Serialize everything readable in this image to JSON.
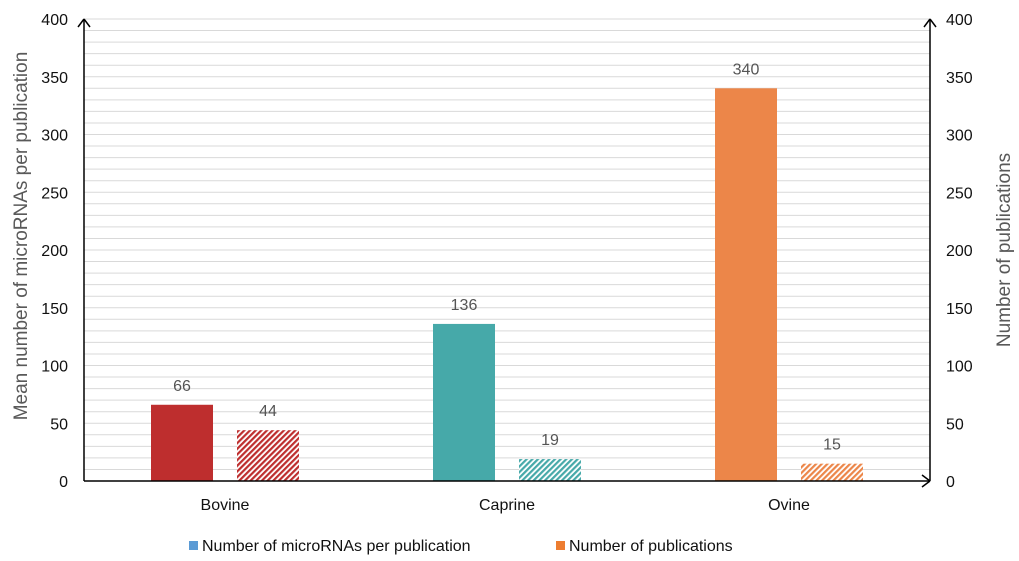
{
  "chart_data": {
    "type": "bar",
    "categories": [
      "Bovine",
      "Caprine",
      "Ovine"
    ],
    "series": [
      {
        "name": "Number of microRNAs per publication",
        "values": [
          66,
          136,
          340
        ],
        "colors": [
          "#be2e2e",
          "#46a9a9",
          "#ec8649"
        ],
        "axis": "left",
        "pattern": "solid"
      },
      {
        "name": "Number of publications",
        "values": [
          44,
          19,
          15
        ],
        "colors": [
          "#be2e2e",
          "#46a9a9",
          "#ec8649"
        ],
        "axis": "right",
        "pattern": "hatched"
      }
    ],
    "data_labels": [
      [
        "66",
        "136",
        "340"
      ],
      [
        "44",
        "19",
        "15"
      ]
    ],
    "ylabel": "Mean number of microRNAs per publication",
    "y2label": "Number of publications",
    "ylim": [
      0,
      400
    ],
    "y2lim": [
      0,
      400
    ],
    "yticks": [
      "0",
      "50",
      "100",
      "150",
      "200",
      "250",
      "300",
      "350",
      "400"
    ],
    "y2ticks": [
      "0",
      "50",
      "100",
      "150",
      "200",
      "250",
      "300",
      "350",
      "400"
    ],
    "grid": true,
    "minor_grid_step": 10,
    "legend": {
      "position": "bottom",
      "entries": [
        {
          "label": "Number of microRNAs per publication",
          "color": "#5b9bd5"
        },
        {
          "label": "Number of publications",
          "color": "#ed7d31"
        }
      ]
    }
  }
}
